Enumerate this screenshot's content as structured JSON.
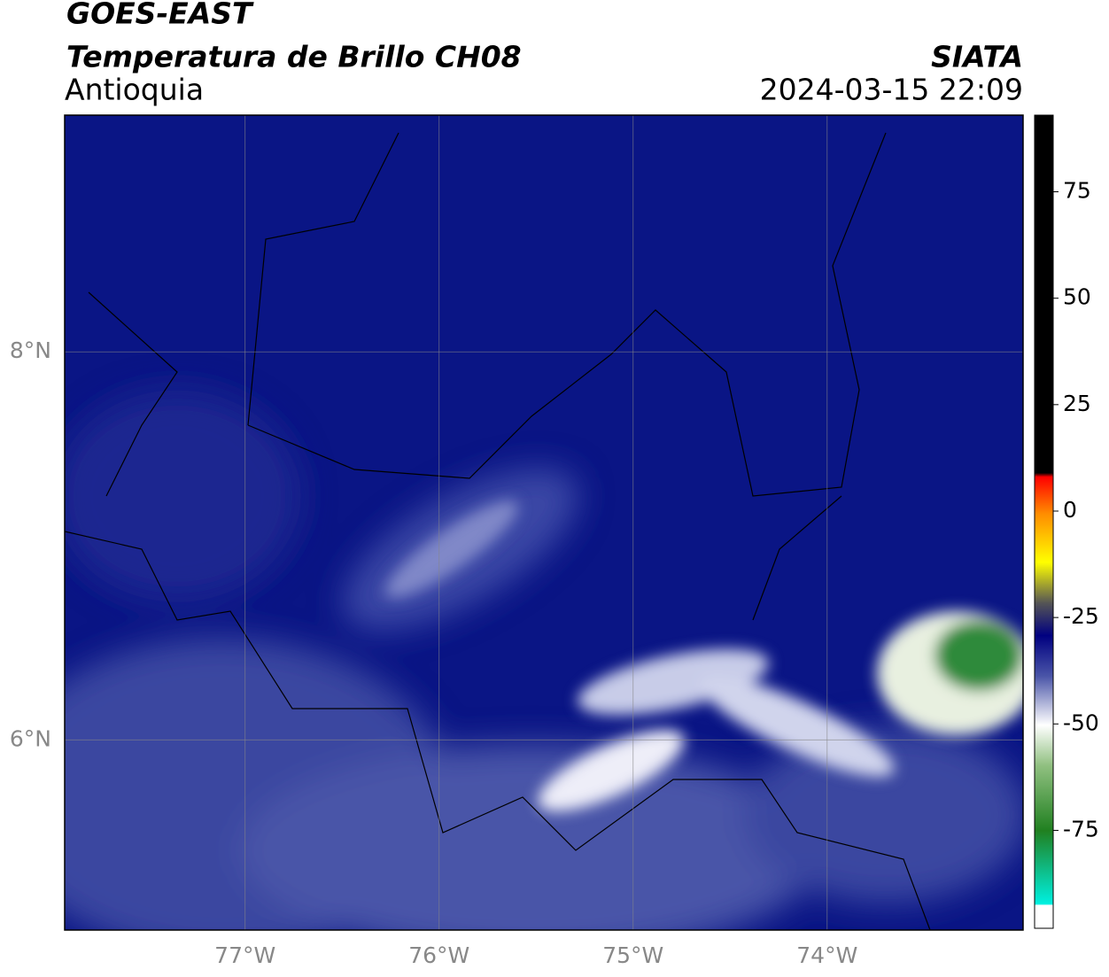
{
  "header": {
    "title": "GOES-EAST",
    "subtitle": "Temperatura de Brillo CH08",
    "region": "Antioquia",
    "source": "SIATA",
    "datetime": "2024-03-15 22:09"
  },
  "map": {
    "lon_range": [
      -77.93,
      -72.99
    ],
    "lat_range": [
      5.02,
      9.22
    ],
    "lon_ticks": [
      {
        "value": -77,
        "label": "77°W"
      },
      {
        "value": -76,
        "label": "76°W"
      },
      {
        "value": -75,
        "label": "75°W"
      },
      {
        "value": -74,
        "label": "74°W"
      }
    ],
    "lat_ticks": [
      {
        "value": 8,
        "label": "8°N"
      },
      {
        "value": 6,
        "label": "6°N"
      }
    ]
  },
  "colorbar": {
    "lim": [
      -98,
      93
    ],
    "ticks": [
      75,
      50,
      25,
      0,
      -25,
      -50,
      -75
    ]
  }
}
